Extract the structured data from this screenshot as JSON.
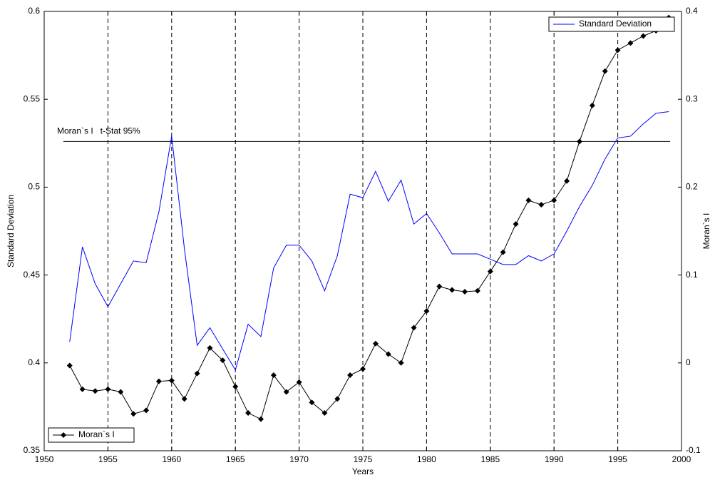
{
  "chart_data": {
    "type": "line",
    "xlabel": "Years",
    "ylabel": "Standard Deviation",
    "y2label": "Moran`s I",
    "x": [
      1952,
      1953,
      1954,
      1955,
      1956,
      1957,
      1958,
      1959,
      1960,
      1961,
      1962,
      1963,
      1964,
      1965,
      1966,
      1967,
      1968,
      1969,
      1970,
      1971,
      1972,
      1973,
      1974,
      1975,
      1976,
      1977,
      1978,
      1979,
      1980,
      1981,
      1982,
      1983,
      1984,
      1985,
      1986,
      1987,
      1988,
      1989,
      1990,
      1991,
      1992,
      1993,
      1994,
      1995,
      1996,
      1997,
      1998,
      1999
    ],
    "series": [
      {
        "name": "Standard Deviation",
        "color": "#0000ff",
        "axis": "y",
        "marker": "none",
        "legend": "upper right",
        "values": [
          0.412,
          0.466,
          0.445,
          0.432,
          0.445,
          0.458,
          0.457,
          0.486,
          0.529,
          0.465,
          0.41,
          0.42,
          0.408,
          0.396,
          0.422,
          0.415,
          0.454,
          0.467,
          0.467,
          0.458,
          0.441,
          0.461,
          0.496,
          0.494,
          0.509,
          0.492,
          0.504,
          0.479,
          0.485,
          0.474,
          0.462,
          0.462,
          0.462,
          0.459,
          0.456,
          0.456,
          0.461,
          0.458,
          0.462,
          0.475,
          0.489,
          0.501,
          0.516,
          0.528,
          0.529,
          0.536,
          0.542,
          0.543
        ]
      },
      {
        "name": "Moran`s I",
        "color": "#000000",
        "axis": "y2",
        "marker": "diamond",
        "legend": "lower left",
        "values": [
          -0.003,
          -0.03,
          -0.032,
          -0.03,
          -0.033,
          -0.058,
          -0.054,
          -0.021,
          -0.02,
          -0.041,
          -0.012,
          0.017,
          0.003,
          -0.027,
          -0.057,
          -0.064,
          -0.014,
          -0.033,
          -0.022,
          -0.045,
          -0.057,
          -0.041,
          -0.014,
          -0.007,
          0.022,
          0.01,
          0,
          0.04,
          0.059,
          0.087,
          0.083,
          0.081,
          0.082,
          0.104,
          0.126,
          0.158,
          0.185,
          0.18,
          0.185,
          0.207,
          0.252,
          0.293,
          0.332,
          0.356,
          0.364,
          0.372,
          0.378,
          0.393
        ]
      }
    ],
    "reference_line": {
      "value": 0.252,
      "axis": "y2",
      "label": "Moran`s I   t-Stat 95%"
    },
    "xlim": [
      1950,
      2000
    ],
    "xticks": [
      1950,
      1955,
      1960,
      1965,
      1970,
      1975,
      1980,
      1985,
      1990,
      1995,
      2000
    ],
    "ylim": [
      0.35,
      0.6
    ],
    "yticks": [
      0.35,
      0.4,
      0.45,
      0.5,
      0.55,
      0.6
    ],
    "y2lim": [
      -0.1,
      0.4
    ],
    "y2ticks": [
      -0.1,
      0,
      0.1,
      0.2,
      0.3,
      0.4
    ],
    "grid": "x-dashed"
  }
}
